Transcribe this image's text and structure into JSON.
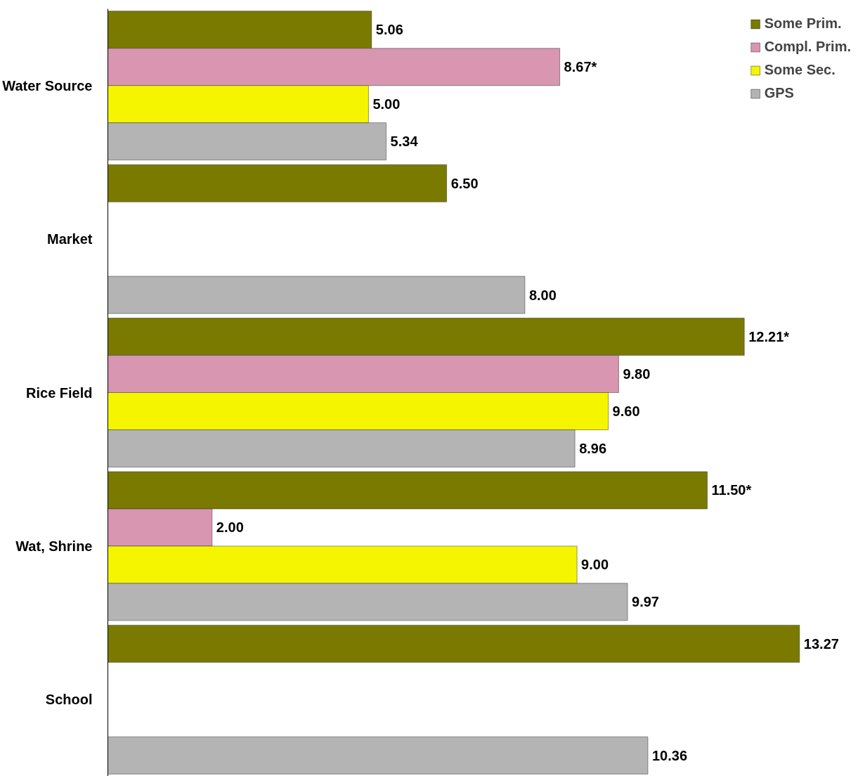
{
  "chart_data": {
    "type": "bar",
    "orientation": "horizontal",
    "legend": "top right",
    "categories": [
      "Water Source",
      "Market",
      "Rice Field",
      "Wat, Shrine",
      "School"
    ],
    "series": [
      {
        "name": "Some Prim.",
        "color": "#7a7a00",
        "values": [
          5.06,
          6.5,
          12.21,
          11.5,
          13.27
        ],
        "value_labels": [
          "5.06",
          "6.50",
          "12.21*",
          "11.50*",
          "13.27"
        ]
      },
      {
        "name": "Compl. Prim.",
        "color": "#d896b0",
        "values": [
          8.67,
          null,
          9.8,
          2.0,
          null
        ],
        "value_labels": [
          "8.67*",
          null,
          "9.80",
          "2.00",
          null
        ]
      },
      {
        "name": "Some Sec.",
        "color": "#f5f500",
        "values": [
          5.0,
          null,
          9.6,
          9.0,
          null
        ],
        "value_labels": [
          "5.00",
          null,
          "9.60",
          "9.00",
          null
        ]
      },
      {
        "name": "GPS",
        "color": "#b4b4b4",
        "values": [
          5.34,
          8.0,
          8.96,
          9.97,
          10.36
        ],
        "value_labels": [
          "5.34",
          "8.00",
          "8.96",
          "9.97",
          "10.36"
        ]
      }
    ]
  }
}
